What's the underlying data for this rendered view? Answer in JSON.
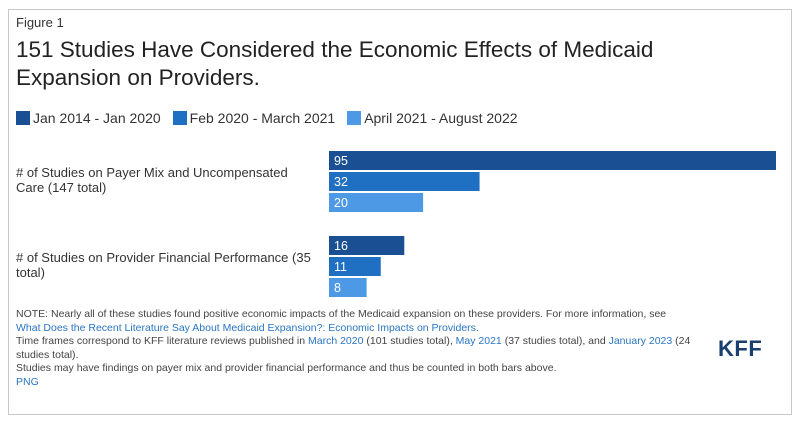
{
  "figure_label": "Figure 1",
  "chart_data": {
    "type": "bar",
    "orientation": "horizontal",
    "title": "151 Studies Have Considered the Economic Effects of Medicaid Expansion on Providers.",
    "categories": [
      "# of Studies on Payer Mix and Uncompensated Care (147 total)",
      "# of Studies on Provider Financial Performance (35 total)"
    ],
    "series": [
      {
        "name": "Jan 2014 - Jan 2020",
        "values": [
          95,
          16
        ],
        "color": "#1a4f93"
      },
      {
        "name": "Feb 2020 - March 2021",
        "values": [
          32,
          11
        ],
        "color": "#1f6fc2"
      },
      {
        "name": "April 2021 - August 2022",
        "values": [
          20,
          8
        ],
        "color": "#4d99e6"
      }
    ],
    "xlim": [
      0,
      95
    ],
    "legend_position": "top-left",
    "grid": false,
    "data_labels": true
  },
  "notes": {
    "line1_text": "NOTE: Nearly all of these studies found positive economic impacts of the Medicaid expansion on these providers. For more information, see ",
    "line1_link": "What Does the Recent Literature Say About Medicaid Expansion?: Economic Impacts on Providers.",
    "line2_a": "Time frames correspond to KFF literature reviews published in ",
    "line2_link1": "March 2020",
    "line2_b": " (101 studies total), ",
    "line2_link2": "May 2021",
    "line2_c": " (37 studies total), and ",
    "line2_link3": "January 2023",
    "line2_d": " (24 studies total).",
    "line3": "Studies may have findings on payer mix and provider financial performance and thus be counted in both bars above.",
    "png_link": "PNG"
  },
  "logo_text": "KFF"
}
